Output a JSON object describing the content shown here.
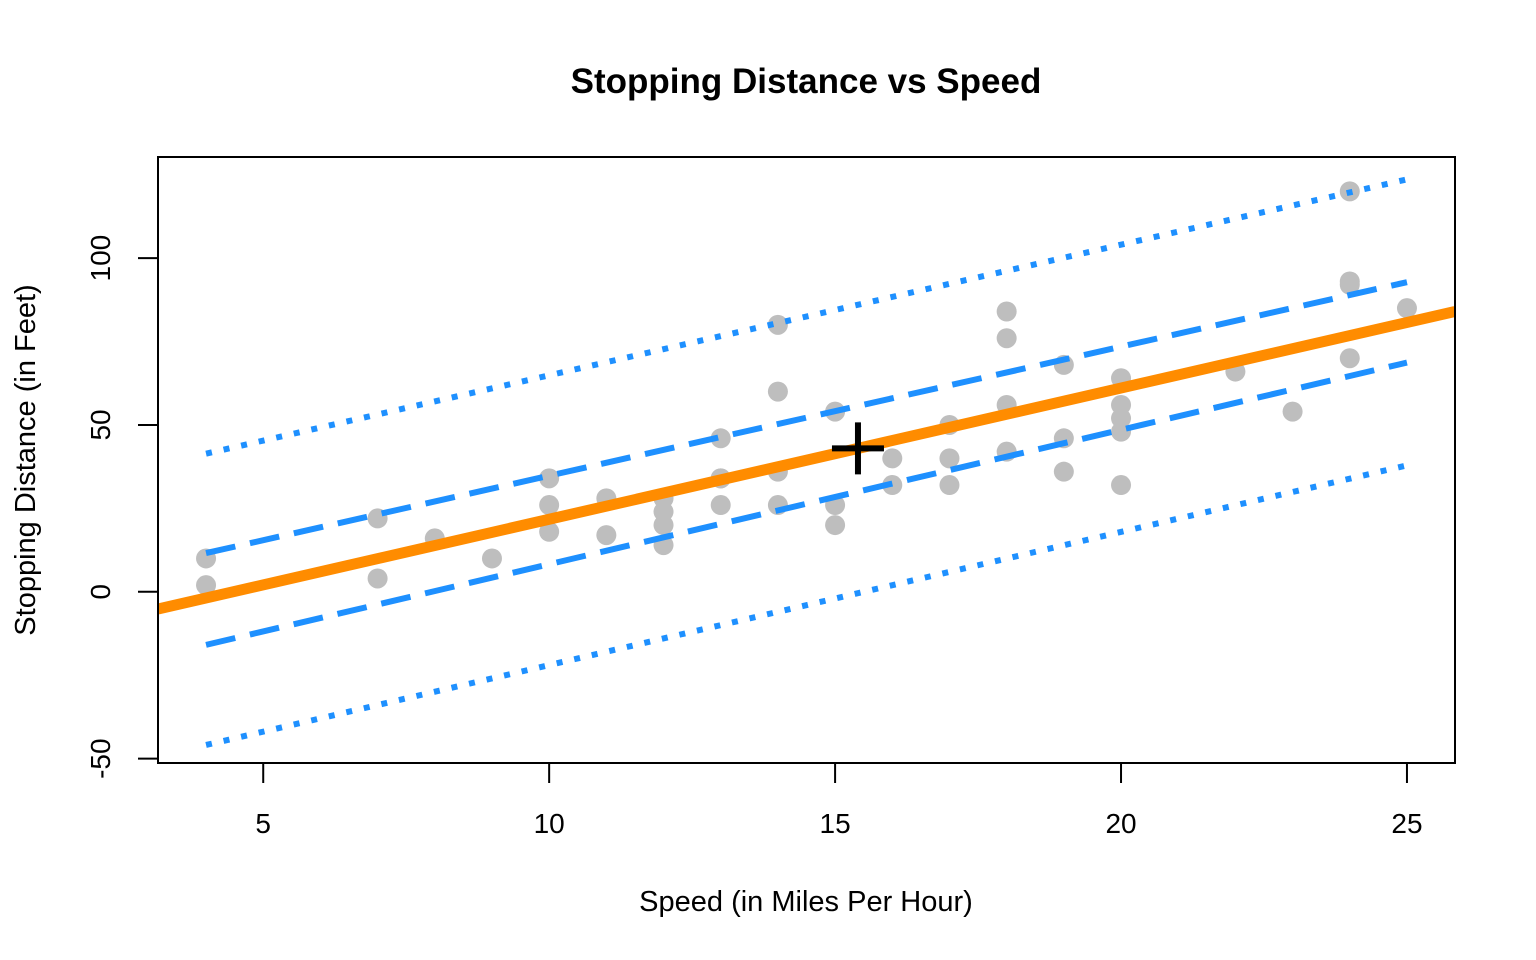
{
  "chart_data": {
    "type": "scatter",
    "title": "Stopping Distance vs Speed",
    "xlabel": "Speed (in Miles Per Hour)",
    "ylabel": "Stopping Distance (in Feet)",
    "xlim": [
      3.16,
      25.84
    ],
    "ylim": [
      -51.3,
      130.3
    ],
    "xticks": [
      5,
      10,
      15,
      20,
      25
    ],
    "yticks": [
      -50,
      0,
      50,
      100
    ],
    "grid": false,
    "colors": {
      "points": "#bebebe",
      "fit_line": "#ff8c00",
      "intervals": "#1e90ff",
      "mean_marker": "#000000"
    },
    "points": {
      "x": [
        4,
        4,
        7,
        7,
        8,
        9,
        10,
        10,
        10,
        11,
        11,
        12,
        12,
        12,
        12,
        13,
        13,
        13,
        13,
        14,
        14,
        14,
        14,
        15,
        15,
        15,
        16,
        16,
        17,
        17,
        17,
        18,
        18,
        18,
        18,
        19,
        19,
        19,
        20,
        20,
        20,
        20,
        20,
        22,
        23,
        24,
        24,
        24,
        24,
        25
      ],
      "y": [
        2,
        10,
        4,
        22,
        16,
        10,
        18,
        26,
        34,
        17,
        28,
        14,
        20,
        24,
        28,
        26,
        34,
        34,
        46,
        26,
        36,
        60,
        80,
        20,
        26,
        54,
        32,
        40,
        32,
        40,
        50,
        42,
        56,
        76,
        84,
        36,
        46,
        68,
        32,
        48,
        52,
        56,
        64,
        66,
        54,
        70,
        92,
        93,
        120,
        85
      ]
    },
    "fit": {
      "intercept": -17.579,
      "slope": 3.932
    },
    "confidence_band": {
      "x": [
        4,
        25
      ],
      "lower": [
        -15.9,
        68.7
      ],
      "upper": [
        11.6,
        92.8
      ]
    },
    "prediction_band": {
      "x": [
        4,
        25
      ],
      "lower": [
        -45.9,
        37.9
      ],
      "upper": [
        41.4,
        123.6
      ]
    },
    "mean_point": {
      "x": 15.4,
      "y": 42.98
    }
  }
}
